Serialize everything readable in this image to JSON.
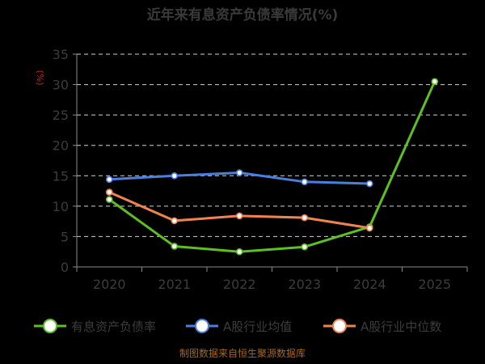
{
  "chart_data": {
    "type": "line",
    "title": "近年来有息资产负债率情况(%)",
    "unit_label": "(%)",
    "categories": [
      "2020",
      "2021",
      "2022",
      "2023",
      "2024",
      "2025"
    ],
    "y_ticks": [
      "0",
      "5",
      "10",
      "15",
      "20",
      "25",
      "30",
      "35"
    ],
    "ylim": [
      0,
      35
    ],
    "grid": true,
    "legend_position": "bottom",
    "series": [
      {
        "name": "有息资产负债率",
        "color": "#5cbf22",
        "values": [
          11.1,
          3.4,
          2.5,
          3.3,
          6.6,
          30.5
        ]
      },
      {
        "name": "A股行业均值",
        "color": "#4a7fe0",
        "values": [
          14.4,
          15.0,
          15.5,
          14.0,
          13.7,
          null
        ]
      },
      {
        "name": "A股行业中位数",
        "color": "#f08450",
        "values": [
          12.3,
          7.6,
          8.4,
          8.1,
          6.4,
          null
        ]
      }
    ],
    "source": "制图数据来自恒生聚源数据库"
  }
}
